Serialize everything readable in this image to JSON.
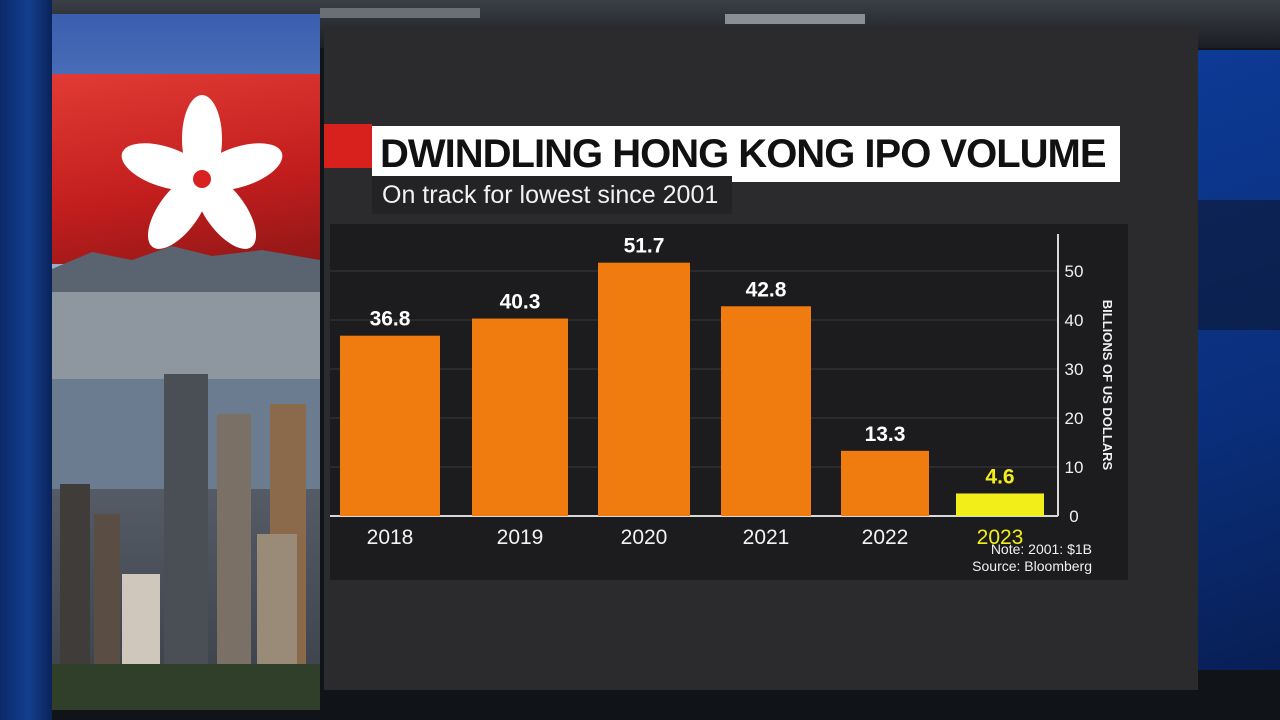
{
  "chart_data": {
    "type": "bar",
    "title": "DWINDLING HONG KONG IPO VOLUME",
    "subtitle": "On track for lowest since 2001",
    "ylabel": "BILLIONS OF US DOLLARS",
    "categories": [
      "2018",
      "2019",
      "2020",
      "2021",
      "2022",
      "2023"
    ],
    "values": [
      36.8,
      40.3,
      51.7,
      42.8,
      13.3,
      4.6
    ],
    "value_labels": [
      "36.8",
      "40.3",
      "51.7",
      "42.8",
      "13.3",
      "4.6"
    ],
    "yticks": [
      "0",
      "10",
      "20",
      "30",
      "40",
      "50"
    ],
    "ylim": [
      0,
      55
    ],
    "grid": true,
    "y_axis_position": "right",
    "bar_color": "#f07b0e",
    "highlight_color": "#f2ee1a",
    "highlight_category": "2023",
    "notes": [
      "Note: 2001: $1B",
      "Source: Bloomberg"
    ]
  }
}
